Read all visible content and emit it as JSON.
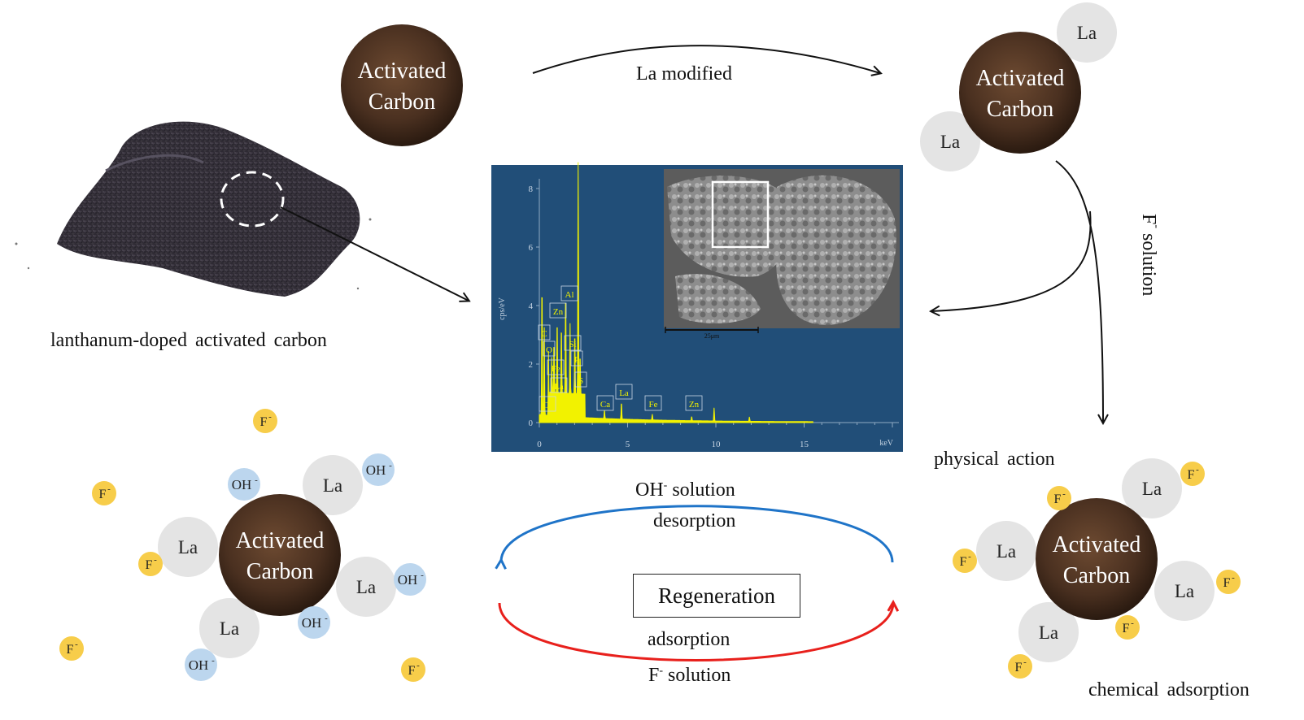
{
  "labels": {
    "powder_caption": "lanthanum-doped activated carbon",
    "la_modified": "La modified",
    "f_solution_vertical_base": "F",
    "f_solution_vertical_sup": "-",
    "f_solution_vertical_rest": " solution",
    "physical_action": "physical action",
    "chemical_adsorption": "chemical adsorption",
    "oh_solution_base": "OH",
    "oh_solution_sup": "-",
    "oh_solution_rest": " solution",
    "desorption": "desorption",
    "regeneration": "Regeneration",
    "adsorption": "adsorption",
    "f_solution_base": "F",
    "f_solution_sup": "-",
    "f_solution_rest": " solution"
  },
  "carbon": {
    "line1": "Activated",
    "line2": "Carbon"
  },
  "ions": {
    "la": "La",
    "f": "F",
    "oh": "OH",
    "minus": "-"
  },
  "eds": {
    "y_axis_label": "cps/eV",
    "x_axis_unit": "keV",
    "y_ticks": [
      "0",
      "2",
      "4",
      "6",
      "8"
    ],
    "x_ticks": [
      "0",
      "5",
      "10",
      "15"
    ],
    "scale_bar": "25μm",
    "peaks": [
      {
        "el": "Al",
        "kev": 1.49
      },
      {
        "el": "Zn",
        "kev": 1.01
      },
      {
        "el": "C",
        "kev": 0.28
      },
      {
        "el": "Si",
        "kev": 1.74
      },
      {
        "el": "O",
        "kev": 0.52
      },
      {
        "el": "P",
        "kev": 2.01
      },
      {
        "el": "Fe",
        "kev": 0.7
      },
      {
        "el": "La",
        "kev": 0.83
      },
      {
        "el": "S",
        "kev": 2.31
      },
      {
        "el": "Ca",
        "kev": 0.34
      },
      {
        "el": "Ca",
        "kev": 3.69
      },
      {
        "el": "La",
        "kev": 4.65
      },
      {
        "el": "Fe",
        "kev": 6.4
      },
      {
        "el": "Zn",
        "kev": 8.63
      }
    ]
  },
  "colors": {
    "carbon": "#4a3020",
    "la_circle": "#e4e4e4",
    "f_circle": "#f7cd4a",
    "oh_circle": "#bcd6ee",
    "eds_bg": "#214e78",
    "spectrum": "#f2f200",
    "blue_arrow": "#1f74c8",
    "red_arrow": "#e8201c"
  }
}
